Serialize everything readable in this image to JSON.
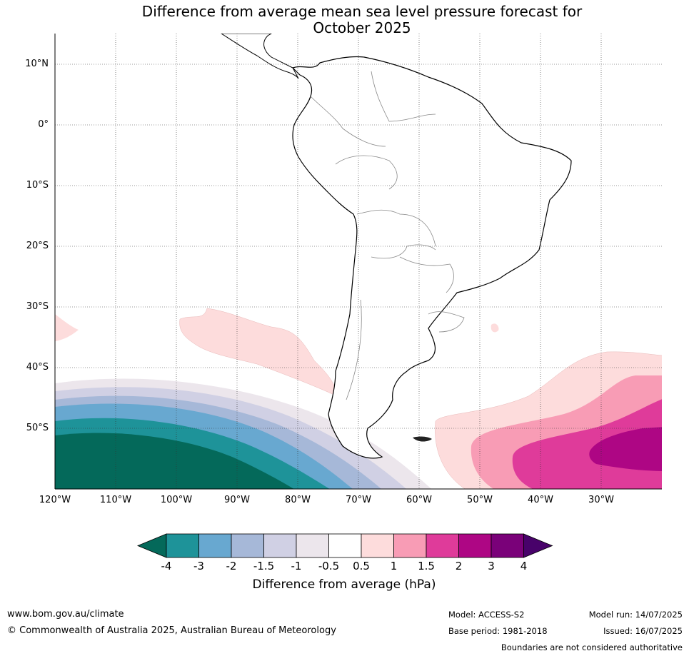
{
  "title_line1": "Difference from average mean sea level pressure forecast for",
  "title_line2": "October 2025",
  "lat_labels": [
    "10°N",
    "0°",
    "10°S",
    "20°S",
    "30°S",
    "40°S",
    "50°S"
  ],
  "lon_labels": [
    "120°W",
    "110°W",
    "100°W",
    "90°W",
    "80°W",
    "70°W",
    "60°W",
    "50°W",
    "40°W",
    "30°W"
  ],
  "colorbar": {
    "title": "Difference from average (hPa)",
    "ticks": [
      "-4",
      "-3",
      "-2",
      "-1.5",
      "-1",
      "-0.5",
      "0.5",
      "1",
      "1.5",
      "2",
      "3",
      "4"
    ],
    "colors": [
      "#04695a",
      "#1e9399",
      "#68a8d0",
      "#a6b8d8",
      "#d0d0e4",
      "#ece6ec",
      "#ffffff",
      "#fddcdc",
      "#f89cb5",
      "#df3b9a",
      "#ae0684",
      "#7a0179",
      "#48026a"
    ]
  },
  "footer": {
    "website": "www.bom.gov.au/climate",
    "copyright": "© Commonwealth of Australia 2025, Australian Bureau of Meteorology",
    "model": "Model: ACCESS-S2",
    "base_period": "Base period: 1981-2018",
    "model_run": "Model run: 14/07/2025",
    "issued": "Issued: 16/07/2025",
    "disclaimer": "Boundaries are not considered authoritative"
  }
}
